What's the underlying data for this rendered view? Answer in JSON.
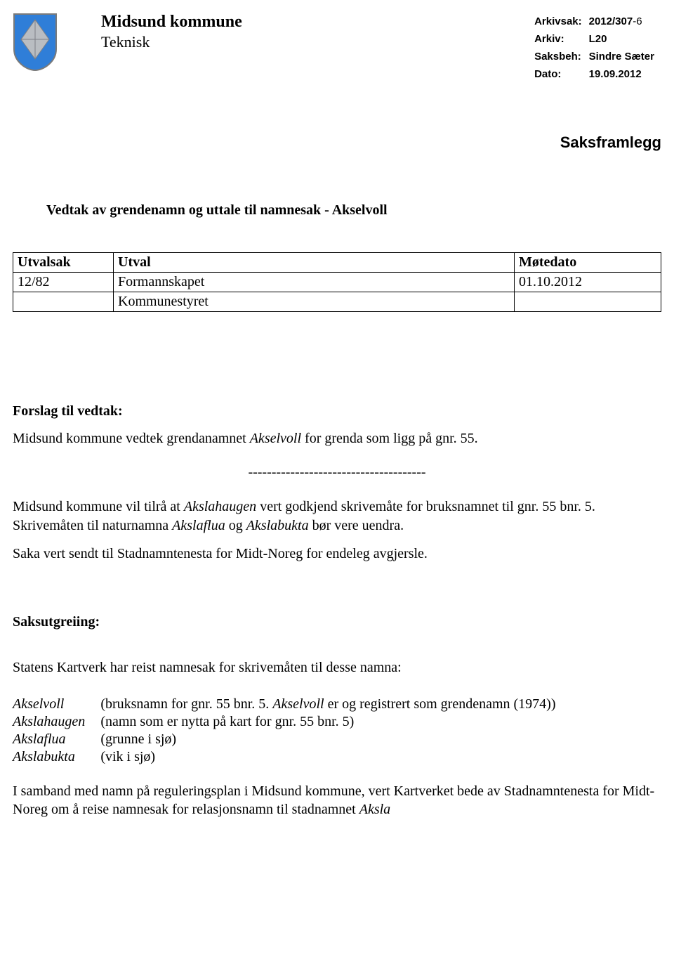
{
  "header": {
    "org_name": "Midsund kommune",
    "dept_name": "Teknisk",
    "meta": {
      "arkivsak_label": "Arkivsak:",
      "arkivsak_value_main": "2012/307",
      "arkivsak_value_suffix": "-6",
      "arkiv_label": "Arkiv:",
      "arkiv_value": "L20",
      "saksbeh_label": "Saksbeh:",
      "saksbeh_value": "Sindre Sæter",
      "dato_label": "Dato:",
      "dato_value": "19.09.2012"
    }
  },
  "doc_type": "Saksframlegg",
  "case_title": "Vedtak av grendenamn og uttale til namnesak - Akselvoll",
  "utval_table": {
    "headers": [
      "Utvalsak",
      "Utval",
      "Møtedato"
    ],
    "rows": [
      [
        "12/82",
        "Formannskapet",
        "01.10.2012"
      ],
      [
        "",
        "Kommunestyret",
        ""
      ]
    ]
  },
  "forslag": {
    "heading": "Forslag til vedtak:",
    "p1_a": "Midsund kommune vedtek grendanamnet ",
    "p1_i1": "Akselvoll",
    "p1_b": " for grenda som ligg på gnr. 55.",
    "divider": "--------------------------------------",
    "p2_a": "Midsund kommune vil tilrå at ",
    "p2_i1": "Akslahaugen",
    "p2_b": " vert godkjend skrivemåte for bruksnamnet til gnr. 55 bnr. 5. Skrivemåten til naturnamna ",
    "p2_i2": "Akslaflua",
    "p2_c": " og ",
    "p2_i3": "Akslabukta",
    "p2_d": " bør vere uendra.",
    "p3": "Saka vert sendt til Stadnamntenesta for Midt-Noreg for endeleg avgjersle."
  },
  "saksutgreiing": {
    "heading": "Saksutgreiing:",
    "intro": "Statens Kartverk har reist namnesak for skrivemåten til desse namna:",
    "names": [
      {
        "name": "Akselvoll",
        "desc_a": "(bruksnamn for gnr. 55 bnr. 5. ",
        "desc_i": "Akselvoll",
        "desc_b": " er og registrert som grendenamn (1974))"
      },
      {
        "name": "Akslahaugen",
        "desc_a": "(namn som er nytta på kart for gnr. 55 bnr. 5)",
        "desc_i": "",
        "desc_b": ""
      },
      {
        "name": "Akslaflua",
        "desc_a": "(grunne i sjø)",
        "desc_i": "",
        "desc_b": ""
      },
      {
        "name": "Akslabukta",
        "desc_a": "(vik i sjø)",
        "desc_i": "",
        "desc_b": ""
      }
    ],
    "tail_a": "I samband med namn på reguleringsplan i Midsund kommune, vert Kartverket bede av Stadnamntenesta for Midt-Noreg om å reise namnesak for relasjonsnamn til stadnamnet ",
    "tail_i": "Aksla"
  },
  "crest": {
    "shield_fill": "#2f7ed8",
    "shield_stroke": "#7a7a7a",
    "diamond_fill": "#b9bdc2",
    "diamond_stroke": "#7d8086"
  }
}
